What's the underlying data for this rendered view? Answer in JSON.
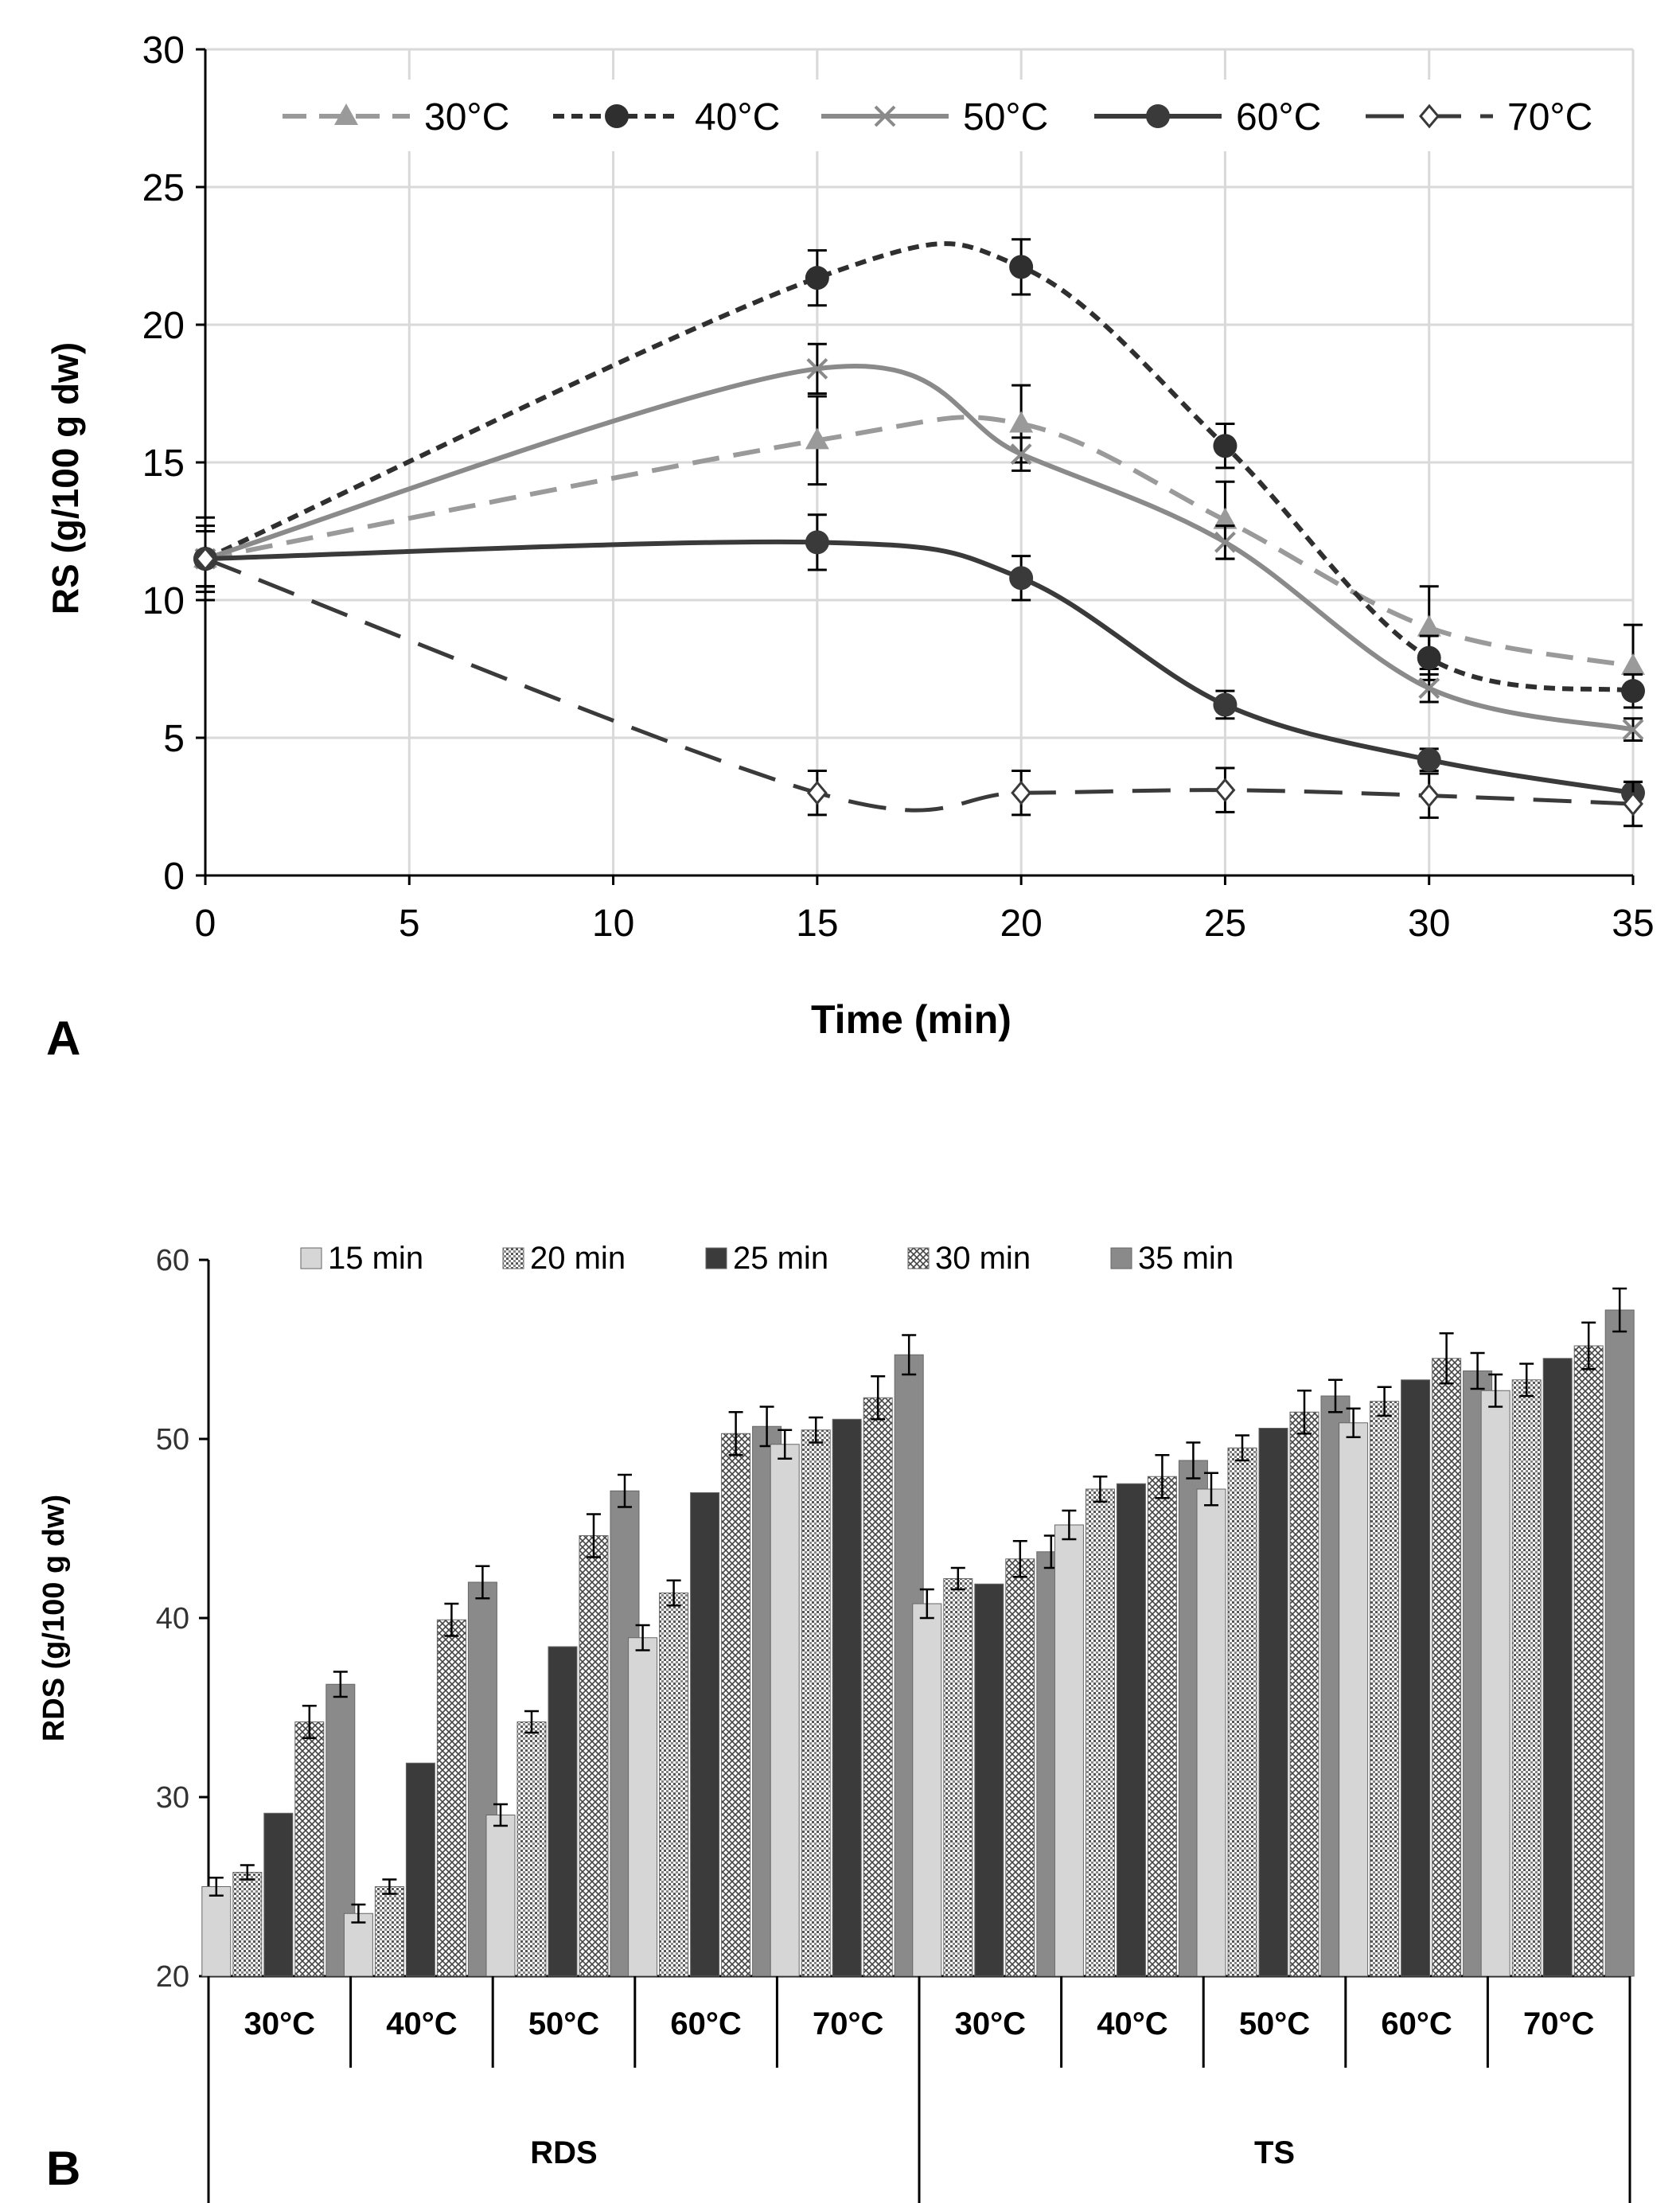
{
  "chart_data": [
    {
      "panel": "A",
      "type": "line",
      "title": "",
      "xlabel": "Time (min)",
      "ylabel": "RS (g/100 g dw)",
      "xlim": [
        0,
        35
      ],
      "ylim": [
        0,
        30
      ],
      "xticks": [
        0,
        5,
        10,
        15,
        20,
        25,
        30,
        35
      ],
      "yticks": [
        0,
        5,
        10,
        15,
        20,
        25,
        30
      ],
      "grid": true,
      "legend_position": "top",
      "x": [
        0,
        15,
        20,
        25,
        30,
        35
      ],
      "series": [
        {
          "name": "30°C",
          "values": [
            11.5,
            15.8,
            16.4,
            12.9,
            9.0,
            7.6
          ],
          "errors": [
            1.2,
            1.6,
            1.4,
            1.4,
            1.5,
            1.5
          ],
          "color": "#9a9a9a",
          "dash": "34,18",
          "marker": "triangle",
          "width": 6
        },
        {
          "name": "40°C",
          "values": [
            11.5,
            21.7,
            22.1,
            15.6,
            7.9,
            6.7
          ],
          "errors": [
            1.0,
            1.0,
            1.0,
            0.8,
            0.8,
            0.6
          ],
          "color": "#2f2f2f",
          "dash": "14,9",
          "marker": "circle",
          "width": 6
        },
        {
          "name": "50°C",
          "values": [
            11.5,
            18.4,
            15.3,
            12.1,
            6.8,
            5.3
          ],
          "errors": [
            1.0,
            0.9,
            0.6,
            0.6,
            0.5,
            0.4
          ],
          "color": "#8a8a8a",
          "dash": "",
          "marker": "x",
          "width": 6
        },
        {
          "name": "60°C",
          "values": [
            11.5,
            12.1,
            10.8,
            6.2,
            4.2,
            3.0
          ],
          "errors": [
            1.0,
            1.0,
            0.8,
            0.5,
            0.4,
            0.4
          ],
          "color": "#3a3a3a",
          "dash": "",
          "marker": "circle",
          "width": 6
        },
        {
          "name": "70°C",
          "values": [
            11.5,
            3.0,
            3.0,
            3.1,
            2.9,
            2.6
          ],
          "errors": [
            1.5,
            0.8,
            0.8,
            0.8,
            0.8,
            0.8
          ],
          "color": "#3a3a3a",
          "dash": "48,24",
          "marker": "diamond",
          "width": 5
        }
      ]
    },
    {
      "panel": "B",
      "type": "bar",
      "title": "",
      "xlabel": "",
      "ylabel": "RDS (g/100 g dw)",
      "ylim": [
        20,
        60
      ],
      "yticks": [
        20,
        30,
        40,
        50,
        60
      ],
      "grid": false,
      "legend_position": "top",
      "groups": [
        {
          "name": "RDS",
          "categories": [
            "30°C",
            "40°C",
            "50°C",
            "60°C",
            "70°C"
          ]
        },
        {
          "name": "TS",
          "categories": [
            "30°C",
            "40°C",
            "50°C",
            "60°C",
            "70°C"
          ]
        }
      ],
      "series": [
        {
          "name": "15 min",
          "pattern": "light",
          "values": [
            25.0,
            23.5,
            29.0,
            38.9,
            49.7,
            40.8,
            45.2,
            47.2,
            50.9,
            52.7
          ],
          "errors": [
            0.5,
            0.5,
            0.6,
            0.7,
            0.8,
            0.8,
            0.8,
            0.9,
            0.8,
            0.9
          ]
        },
        {
          "name": "20 min",
          "pattern": "dots",
          "values": [
            25.8,
            25.0,
            34.2,
            41.4,
            50.5,
            42.2,
            47.2,
            49.5,
            52.1,
            53.3
          ],
          "errors": [
            0.4,
            0.4,
            0.6,
            0.7,
            0.7,
            0.6,
            0.7,
            0.7,
            0.8,
            0.9
          ]
        },
        {
          "name": "25 min",
          "pattern": "dark",
          "values": [
            29.1,
            31.9,
            38.4,
            47.0,
            51.1,
            41.9,
            47.5,
            50.6,
            53.3,
            54.5
          ]
        },
        {
          "name": "30 min",
          "pattern": "cross",
          "values": [
            34.2,
            39.9,
            44.6,
            50.3,
            52.3,
            43.3,
            47.9,
            51.5,
            54.5,
            55.2
          ],
          "errors": [
            0.9,
            0.9,
            1.2,
            1.2,
            1.2,
            1.0,
            1.2,
            1.2,
            1.4,
            1.3
          ]
        },
        {
          "name": "35 min",
          "pattern": "medium",
          "values": [
            36.3,
            42.0,
            47.1,
            50.7,
            54.7,
            43.7,
            48.8,
            52.4,
            53.8,
            57.2
          ],
          "errors": [
            0.7,
            0.9,
            0.9,
            1.1,
            1.1,
            0.9,
            1.0,
            0.9,
            1.0,
            1.2
          ]
        }
      ]
    }
  ],
  "panel_labels": {
    "a": "A",
    "b": "B"
  }
}
